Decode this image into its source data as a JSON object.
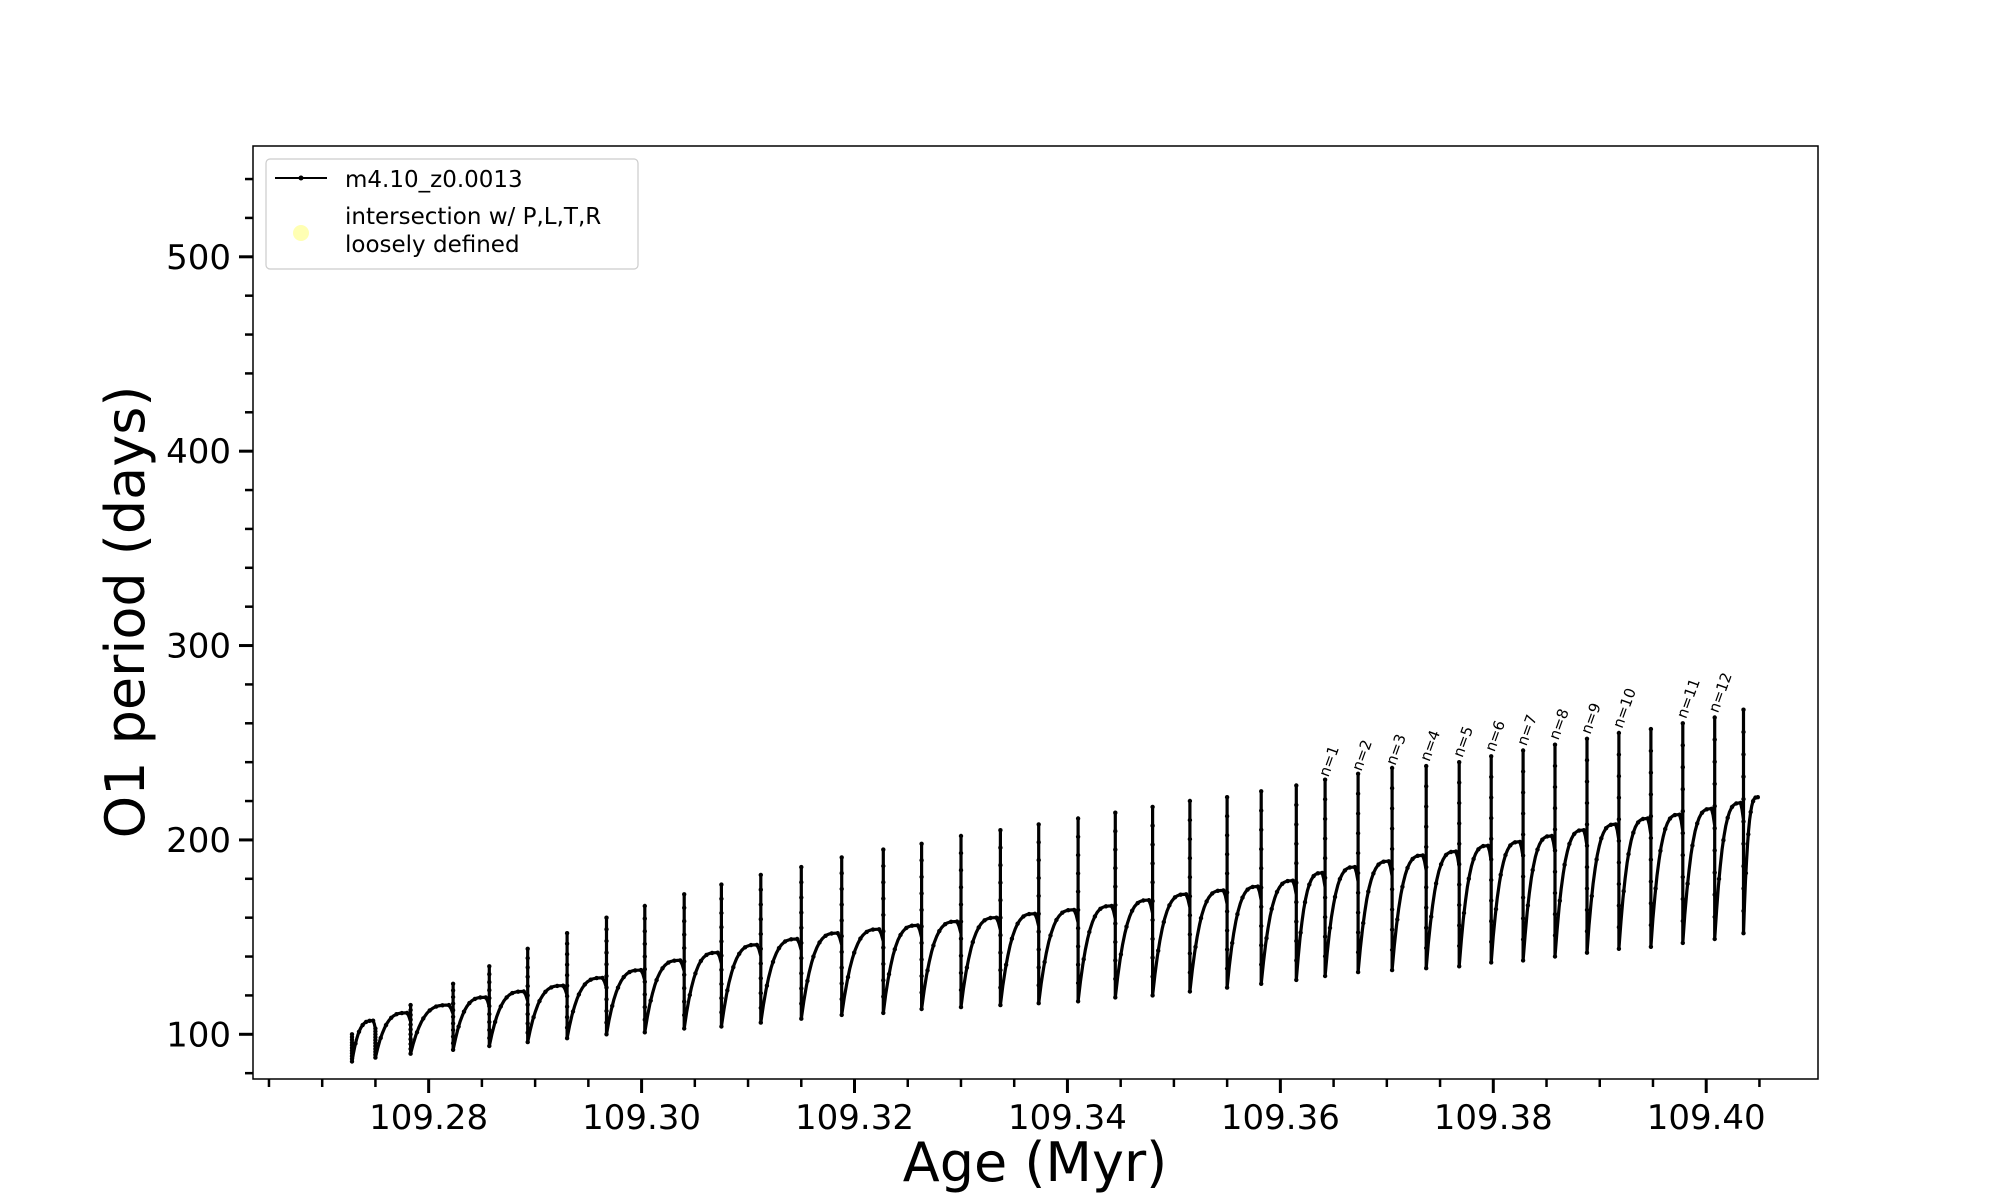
{
  "chart_data": {
    "type": "line",
    "title": "",
    "xlabel": "Age (Myr)",
    "ylabel": "O1 period (days)",
    "xlim": [
      109.2635,
      109.4105
    ],
    "ylim": [
      77,
      557
    ],
    "x_ticks": [
      109.28,
      109.3,
      109.32,
      109.34,
      109.36,
      109.38,
      109.4
    ],
    "x_tick_labels": [
      "109.28",
      "109.30",
      "109.32",
      "109.34",
      "109.36",
      "109.38",
      "109.40"
    ],
    "y_ticks": [
      100,
      200,
      300,
      400,
      500
    ],
    "y_tick_labels": [
      "100",
      "200",
      "300",
      "400",
      "500"
    ],
    "grid": false,
    "legend": {
      "location": "upper-left",
      "entries": [
        {
          "label": "m4.10_z0.0013",
          "color": "#000000",
          "marker": "line-dot"
        },
        {
          "label_lines": [
            "intersection w/ P,L,T,R",
            "loosely defined"
          ],
          "color": "#ffffb3",
          "marker": "circle"
        }
      ]
    },
    "series": [
      {
        "name": "m4.10_z0.0013",
        "color": "#000000",
        "description_points": "pulse-by-pulse sawtooth",
        "pulses": [
          {
            "start": 109.2728,
            "end": 109.275,
            "peak": 100,
            "min": 86,
            "plateau": 107
          },
          {
            "start": 109.275,
            "end": 109.2783,
            "peak": 103,
            "min": 88,
            "plateau": 111
          },
          {
            "start": 109.2783,
            "end": 109.2823,
            "peak": 115,
            "min": 90,
            "plateau": 115
          },
          {
            "start": 109.2823,
            "end": 109.2857,
            "peak": 126,
            "min": 92,
            "plateau": 119
          },
          {
            "start": 109.2857,
            "end": 109.2893,
            "peak": 135,
            "min": 94,
            "plateau": 122
          },
          {
            "start": 109.2893,
            "end": 109.293,
            "peak": 144,
            "min": 96,
            "plateau": 125
          },
          {
            "start": 109.293,
            "end": 109.2967,
            "peak": 152,
            "min": 98,
            "plateau": 129
          },
          {
            "start": 109.2967,
            "end": 109.3003,
            "peak": 160,
            "min": 100,
            "plateau": 133
          },
          {
            "start": 109.3003,
            "end": 109.304,
            "peak": 166,
            "min": 101,
            "plateau": 138
          },
          {
            "start": 109.304,
            "end": 109.3075,
            "peak": 172,
            "min": 103,
            "plateau": 142
          },
          {
            "start": 109.3075,
            "end": 109.3112,
            "peak": 177,
            "min": 104,
            "plateau": 146
          },
          {
            "start": 109.3112,
            "end": 109.315,
            "peak": 182,
            "min": 106,
            "plateau": 149
          },
          {
            "start": 109.315,
            "end": 109.3188,
            "peak": 186,
            "min": 108,
            "plateau": 152
          },
          {
            "start": 109.3188,
            "end": 109.3227,
            "peak": 191,
            "min": 110,
            "plateau": 154
          },
          {
            "start": 109.3227,
            "end": 109.3263,
            "peak": 195,
            "min": 111,
            "plateau": 156
          },
          {
            "start": 109.3263,
            "end": 109.33,
            "peak": 198,
            "min": 113,
            "plateau": 158
          },
          {
            "start": 109.33,
            "end": 109.3337,
            "peak": 202,
            "min": 114,
            "plateau": 160
          },
          {
            "start": 109.3337,
            "end": 109.3373,
            "peak": 205,
            "min": 115,
            "plateau": 162
          },
          {
            "start": 109.3373,
            "end": 109.341,
            "peak": 208,
            "min": 116,
            "plateau": 164
          },
          {
            "start": 109.341,
            "end": 109.3445,
            "peak": 211,
            "min": 117,
            "plateau": 166
          },
          {
            "start": 109.3445,
            "end": 109.348,
            "peak": 214,
            "min": 119,
            "plateau": 169
          },
          {
            "start": 109.348,
            "end": 109.3515,
            "peak": 217,
            "min": 120,
            "plateau": 172
          },
          {
            "start": 109.3515,
            "end": 109.355,
            "peak": 220,
            "min": 122,
            "plateau": 174
          },
          {
            "start": 109.355,
            "end": 109.3582,
            "peak": 222,
            "min": 124,
            "plateau": 176
          },
          {
            "start": 109.3582,
            "end": 109.3615,
            "peak": 225,
            "min": 126,
            "plateau": 179
          },
          {
            "start": 109.3615,
            "end": 109.3642,
            "peak": 228,
            "min": 128,
            "plateau": 183
          },
          {
            "start": 109.3642,
            "end": 109.3673,
            "peak": 231,
            "min": 130,
            "plateau": 186
          },
          {
            "start": 109.3673,
            "end": 109.3705,
            "peak": 234,
            "min": 132,
            "plateau": 189
          },
          {
            "start": 109.3705,
            "end": 109.3737,
            "peak": 237,
            "min": 133,
            "plateau": 192
          },
          {
            "start": 109.3737,
            "end": 109.3768,
            "peak": 238,
            "min": 134,
            "plateau": 194
          },
          {
            "start": 109.3768,
            "end": 109.3798,
            "peak": 240,
            "min": 135,
            "plateau": 197
          },
          {
            "start": 109.3798,
            "end": 109.3828,
            "peak": 243,
            "min": 137,
            "plateau": 199
          },
          {
            "start": 109.3828,
            "end": 109.3858,
            "peak": 246,
            "min": 138,
            "plateau": 202
          },
          {
            "start": 109.3858,
            "end": 109.3888,
            "peak": 249,
            "min": 140,
            "plateau": 205
          },
          {
            "start": 109.3888,
            "end": 109.3918,
            "peak": 252,
            "min": 142,
            "plateau": 208
          },
          {
            "start": 109.3918,
            "end": 109.3948,
            "peak": 255,
            "min": 144,
            "plateau": 211
          },
          {
            "start": 109.3948,
            "end": 109.3978,
            "peak": 257,
            "min": 145,
            "plateau": 213
          },
          {
            "start": 109.3978,
            "end": 109.4008,
            "peak": 260,
            "min": 147,
            "plateau": 216
          },
          {
            "start": 109.4008,
            "end": 109.4035,
            "peak": 263,
            "min": 149,
            "plateau": 219
          },
          {
            "start": 109.4035,
            "end": 109.405,
            "peak": 267,
            "min": 152,
            "plateau": 222
          }
        ]
      }
    ],
    "annotations": [
      {
        "text": "n=1",
        "x": 109.3645,
        "y": 232
      },
      {
        "text": "n=2",
        "x": 109.3676,
        "y": 235
      },
      {
        "text": "n=3",
        "x": 109.3708,
        "y": 238
      },
      {
        "text": "n=4",
        "x": 109.374,
        "y": 240
      },
      {
        "text": "n=5",
        "x": 109.3771,
        "y": 242
      },
      {
        "text": "n=6",
        "x": 109.3801,
        "y": 245
      },
      {
        "text": "n=7",
        "x": 109.3831,
        "y": 248
      },
      {
        "text": "n=8",
        "x": 109.3861,
        "y": 251
      },
      {
        "text": "n=9",
        "x": 109.3891,
        "y": 254
      },
      {
        "text": "n=10",
        "x": 109.3921,
        "y": 257
      },
      {
        "text": "n=11",
        "x": 109.3981,
        "y": 262
      },
      {
        "text": "n=12",
        "x": 109.4011,
        "y": 265
      }
    ]
  }
}
